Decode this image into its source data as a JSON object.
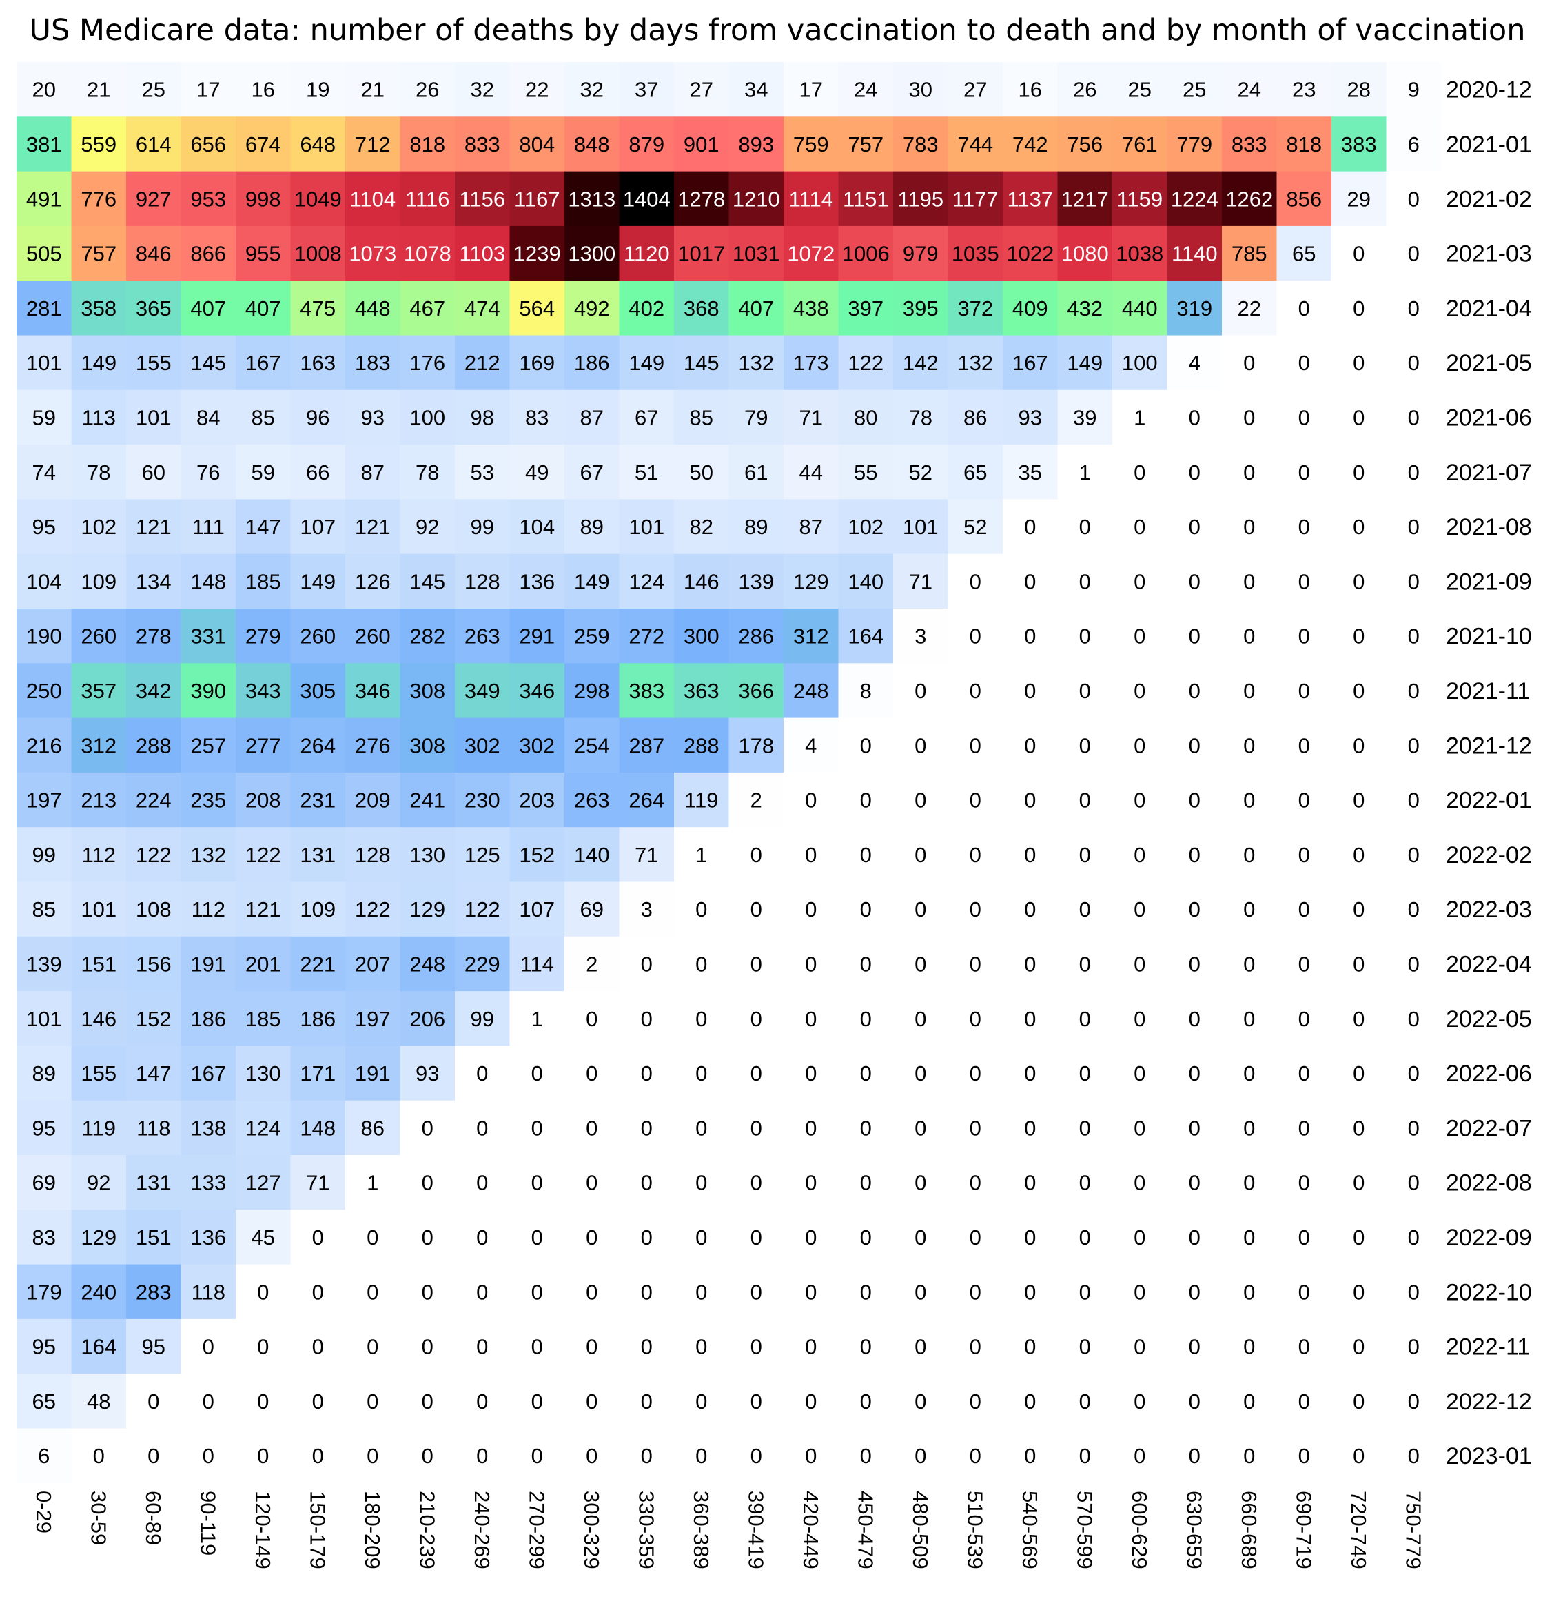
{
  "chart_data": {
    "type": "heatmap",
    "title": "US Medicare data: number of deaths by days from vaccination to death and by month of vaccination",
    "x_categories": [
      "0-29",
      "30-59",
      "60-89",
      "90-119",
      "120-149",
      "150-179",
      "180-209",
      "210-239",
      "240-269",
      "270-299",
      "300-329",
      "330-359",
      "360-389",
      "390-419",
      "420-449",
      "450-479",
      "480-509",
      "510-539",
      "540-569",
      "570-599",
      "600-629",
      "630-659",
      "660-689",
      "690-719",
      "720-749",
      "750-779"
    ],
    "y_categories": [
      "2020-12",
      "2021-01",
      "2021-02",
      "2021-03",
      "2021-04",
      "2021-05",
      "2021-06",
      "2021-07",
      "2021-08",
      "2021-09",
      "2021-10",
      "2021-11",
      "2021-12",
      "2022-01",
      "2022-02",
      "2022-03",
      "2022-04",
      "2022-05",
      "2022-06",
      "2022-07",
      "2022-08",
      "2022-09",
      "2022-10",
      "2022-11",
      "2022-12",
      "2023-01"
    ],
    "values": [
      [
        20,
        21,
        25,
        17,
        16,
        19,
        21,
        26,
        32,
        22,
        32,
        37,
        27,
        34,
        17,
        24,
        30,
        27,
        16,
        26,
        25,
        25,
        24,
        23,
        28,
        9
      ],
      [
        381,
        559,
        614,
        656,
        674,
        648,
        712,
        818,
        833,
        804,
        848,
        879,
        901,
        893,
        759,
        757,
        783,
        744,
        742,
        756,
        761,
        779,
        833,
        818,
        383,
        6
      ],
      [
        491,
        776,
        927,
        953,
        998,
        1049,
        1104,
        1116,
        1156,
        1167,
        1313,
        1404,
        1278,
        1210,
        1114,
        1151,
        1195,
        1177,
        1137,
        1217,
        1159,
        1224,
        1262,
        856,
        29,
        0
      ],
      [
        505,
        757,
        846,
        866,
        955,
        1008,
        1073,
        1078,
        1103,
        1239,
        1300,
        1120,
        1017,
        1031,
        1072,
        1006,
        979,
        1035,
        1022,
        1080,
        1038,
        1140,
        785,
        65,
        0,
        0
      ],
      [
        281,
        358,
        365,
        407,
        407,
        475,
        448,
        467,
        474,
        564,
        492,
        402,
        368,
        407,
        438,
        397,
        395,
        372,
        409,
        432,
        440,
        319,
        22,
        0,
        0,
        0
      ],
      [
        101,
        149,
        155,
        145,
        167,
        163,
        183,
        176,
        212,
        169,
        186,
        149,
        145,
        132,
        173,
        122,
        142,
        132,
        167,
        149,
        100,
        4,
        0,
        0,
        0,
        0
      ],
      [
        59,
        113,
        101,
        84,
        85,
        96,
        93,
        100,
        98,
        83,
        87,
        67,
        85,
        79,
        71,
        80,
        78,
        86,
        93,
        39,
        1,
        0,
        0,
        0,
        0,
        0
      ],
      [
        74,
        78,
        60,
        76,
        59,
        66,
        87,
        78,
        53,
        49,
        67,
        51,
        50,
        61,
        44,
        55,
        52,
        65,
        35,
        1,
        0,
        0,
        0,
        0,
        0,
        0
      ],
      [
        95,
        102,
        121,
        111,
        147,
        107,
        121,
        92,
        99,
        104,
        89,
        101,
        82,
        89,
        87,
        102,
        101,
        52,
        0,
        0,
        0,
        0,
        0,
        0,
        0,
        0
      ],
      [
        104,
        109,
        134,
        148,
        185,
        149,
        126,
        145,
        128,
        136,
        149,
        124,
        146,
        139,
        129,
        140,
        71,
        0,
        0,
        0,
        0,
        0,
        0,
        0,
        0,
        0
      ],
      [
        190,
        260,
        278,
        331,
        279,
        260,
        260,
        282,
        263,
        291,
        259,
        272,
        300,
        286,
        312,
        164,
        3,
        0,
        0,
        0,
        0,
        0,
        0,
        0,
        0,
        0
      ],
      [
        250,
        357,
        342,
        390,
        343,
        305,
        346,
        308,
        349,
        346,
        298,
        383,
        363,
        366,
        248,
        8,
        0,
        0,
        0,
        0,
        0,
        0,
        0,
        0,
        0,
        0
      ],
      [
        216,
        312,
        288,
        257,
        277,
        264,
        276,
        308,
        302,
        302,
        254,
        287,
        288,
        178,
        4,
        0,
        0,
        0,
        0,
        0,
        0,
        0,
        0,
        0,
        0,
        0
      ],
      [
        197,
        213,
        224,
        235,
        208,
        231,
        209,
        241,
        230,
        203,
        263,
        264,
        119,
        2,
        0,
        0,
        0,
        0,
        0,
        0,
        0,
        0,
        0,
        0,
        0,
        0
      ],
      [
        99,
        112,
        122,
        132,
        122,
        131,
        128,
        130,
        125,
        152,
        140,
        71,
        1,
        0,
        0,
        0,
        0,
        0,
        0,
        0,
        0,
        0,
        0,
        0,
        0,
        0
      ],
      [
        85,
        101,
        108,
        112,
        121,
        109,
        122,
        129,
        122,
        107,
        69,
        3,
        0,
        0,
        0,
        0,
        0,
        0,
        0,
        0,
        0,
        0,
        0,
        0,
        0,
        0
      ],
      [
        139,
        151,
        156,
        191,
        201,
        221,
        207,
        248,
        229,
        114,
        2,
        0,
        0,
        0,
        0,
        0,
        0,
        0,
        0,
        0,
        0,
        0,
        0,
        0,
        0,
        0
      ],
      [
        101,
        146,
        152,
        186,
        185,
        186,
        197,
        206,
        99,
        1,
        0,
        0,
        0,
        0,
        0,
        0,
        0,
        0,
        0,
        0,
        0,
        0,
        0,
        0,
        0,
        0
      ],
      [
        89,
        155,
        147,
        167,
        130,
        171,
        191,
        93,
        0,
        0,
        0,
        0,
        0,
        0,
        0,
        0,
        0,
        0,
        0,
        0,
        0,
        0,
        0,
        0,
        0,
        0
      ],
      [
        95,
        119,
        118,
        138,
        124,
        148,
        86,
        0,
        0,
        0,
        0,
        0,
        0,
        0,
        0,
        0,
        0,
        0,
        0,
        0,
        0,
        0,
        0,
        0,
        0,
        0
      ],
      [
        69,
        92,
        131,
        133,
        127,
        71,
        1,
        0,
        0,
        0,
        0,
        0,
        0,
        0,
        0,
        0,
        0,
        0,
        0,
        0,
        0,
        0,
        0,
        0,
        0,
        0
      ],
      [
        83,
        129,
        151,
        136,
        45,
        0,
        0,
        0,
        0,
        0,
        0,
        0,
        0,
        0,
        0,
        0,
        0,
        0,
        0,
        0,
        0,
        0,
        0,
        0,
        0,
        0
      ],
      [
        179,
        240,
        283,
        118,
        0,
        0,
        0,
        0,
        0,
        0,
        0,
        0,
        0,
        0,
        0,
        0,
        0,
        0,
        0,
        0,
        0,
        0,
        0,
        0,
        0,
        0
      ],
      [
        95,
        164,
        95,
        0,
        0,
        0,
        0,
        0,
        0,
        0,
        0,
        0,
        0,
        0,
        0,
        0,
        0,
        0,
        0,
        0,
        0,
        0,
        0,
        0,
        0,
        0
      ],
      [
        65,
        48,
        0,
        0,
        0,
        0,
        0,
        0,
        0,
        0,
        0,
        0,
        0,
        0,
        0,
        0,
        0,
        0,
        0,
        0,
        0,
        0,
        0,
        0,
        0,
        0
      ],
      [
        6,
        0,
        0,
        0,
        0,
        0,
        0,
        0,
        0,
        0,
        0,
        0,
        0,
        0,
        0,
        0,
        0,
        0,
        0,
        0,
        0,
        0,
        0,
        0,
        0,
        0
      ]
    ],
    "color_scale": {
      "stops": [
        {
          "value": 0,
          "color": "#ffffff"
        },
        {
          "value": 80,
          "color": "#dceafe"
        },
        {
          "value": 300,
          "color": "#7ab2fb"
        },
        {
          "value": 400,
          "color": "#6ffba8"
        },
        {
          "value": 560,
          "color": "#fcfc74"
        },
        {
          "value": 700,
          "color": "#ffbe6c"
        },
        {
          "value": 900,
          "color": "#ff6f6f"
        },
        {
          "value": 1100,
          "color": "#d92a3e"
        },
        {
          "value": 1250,
          "color": "#4a0006"
        },
        {
          "value": 1400,
          "color": "#000000"
        }
      ]
    },
    "xlabel": "",
    "ylabel": "",
    "legend": "none",
    "grid": false
  }
}
